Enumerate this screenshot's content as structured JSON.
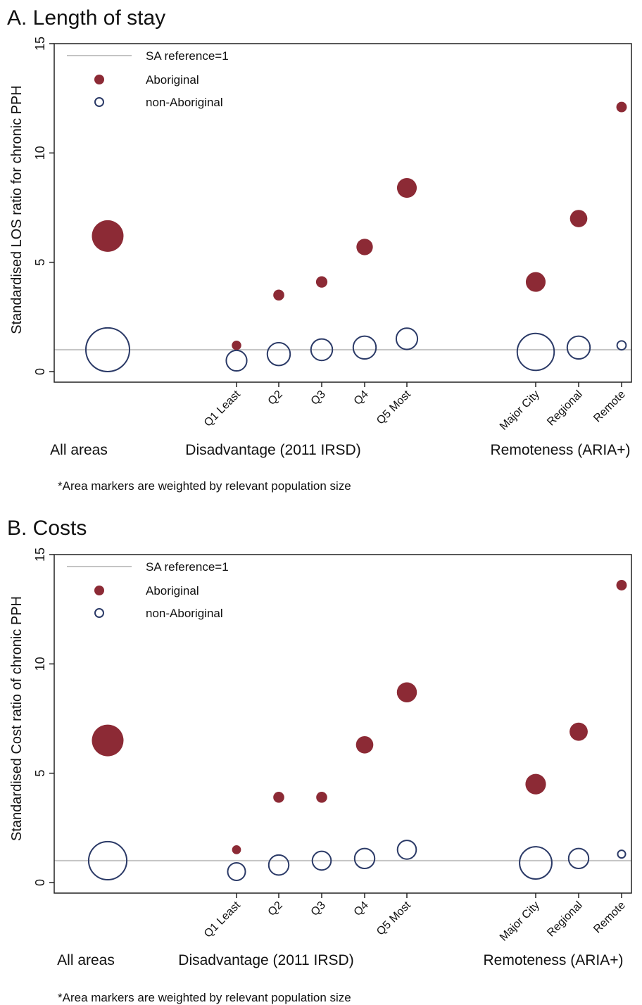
{
  "colors": {
    "aboriginal": "#8c2a35",
    "non_aboriginal": "#2b3a67",
    "reference_line": "#c4c4c4",
    "axis": "#222222"
  },
  "chart_data": [
    {
      "type": "scatter",
      "title": "A. Length of stay",
      "ylabel": "Standardised LOS ratio for chronic PPH",
      "xlabel": "",
      "ylim": [
        0,
        15
      ],
      "yticks": [
        0,
        5,
        10,
        15
      ],
      "grid": false,
      "legend_position": "top-left",
      "legend": [
        "SA reference=1",
        "Aboriginal",
        "non-Aboriginal"
      ],
      "reference": {
        "label": "SA reference=1",
        "value": 1
      },
      "categories": [
        "",
        "Q1 Least",
        "Q2",
        "Q3",
        "Q4",
        "Q5 Most",
        "Major City",
        "Regional",
        "Remote"
      ],
      "groups": [
        "All areas",
        "Disadvantage (2011 IRSD)",
        "Remoteness (ARIA+)"
      ],
      "marker_size_note": "relative marker area (approx.)",
      "series": [
        {
          "name": "Aboriginal",
          "values": [
            6.2,
            1.2,
            3.5,
            4.1,
            5.7,
            8.4,
            4.1,
            7.0,
            12.1
          ],
          "sizes": [
            1.0,
            0.09,
            0.12,
            0.13,
            0.27,
            0.39,
            0.39,
            0.3,
            0.11
          ]
        },
        {
          "name": "non-Aboriginal",
          "values": [
            1.0,
            0.5,
            0.8,
            1.0,
            1.1,
            1.5,
            0.9,
            1.1,
            1.2
          ],
          "sizes": [
            1.9,
            0.42,
            0.52,
            0.46,
            0.52,
            0.45,
            1.36,
            0.52,
            0.08
          ]
        }
      ],
      "footnote": "*Area markers are weighted by relevant population size"
    },
    {
      "type": "scatter",
      "title": "B. Costs",
      "ylabel": "Standardised Cost ratio of chronic PPH",
      "xlabel": "",
      "ylim": [
        0,
        15
      ],
      "yticks": [
        0,
        5,
        10,
        15
      ],
      "grid": false,
      "legend_position": "top-left",
      "legend": [
        "SA reference=1",
        "Aboriginal",
        "non-Aboriginal"
      ],
      "reference": {
        "label": "SA reference=1",
        "value": 1
      },
      "categories": [
        "",
        "Q1 Least",
        "Q2",
        "Q3",
        "Q4",
        "Q5 Most",
        "Major City",
        "Regional",
        "Remote"
      ],
      "groups": [
        "All areas",
        "Disadvantage (2011 IRSD)",
        "Remoteness (ARIA+)"
      ],
      "marker_size_note": "relative marker area (approx.)",
      "series": [
        {
          "name": "Aboriginal",
          "values": [
            6.5,
            1.5,
            3.9,
            3.9,
            6.3,
            8.7,
            4.5,
            6.9,
            13.6
          ],
          "sizes": [
            1.0,
            0.08,
            0.12,
            0.12,
            0.3,
            0.4,
            0.42,
            0.33,
            0.11
          ]
        },
        {
          "name": "non-Aboriginal",
          "values": [
            1.0,
            0.5,
            0.8,
            1.0,
            1.1,
            1.5,
            0.9,
            1.1,
            1.3
          ],
          "sizes": [
            1.45,
            0.31,
            0.4,
            0.35,
            0.4,
            0.35,
            1.04,
            0.4,
            0.06
          ]
        }
      ],
      "footnote": "*Area markers are weighted by relevant population size"
    }
  ]
}
